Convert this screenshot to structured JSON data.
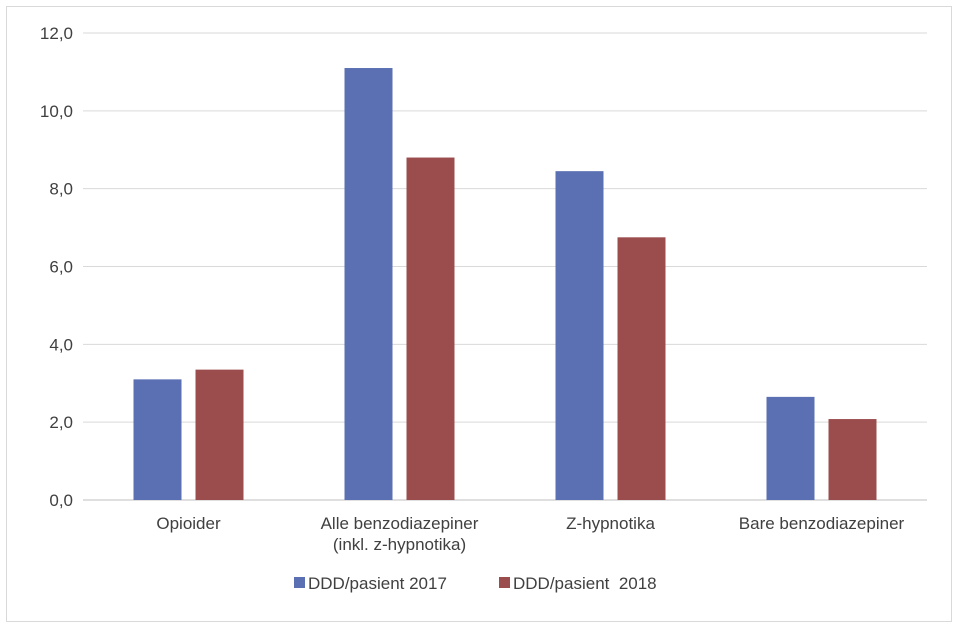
{
  "chart_data": {
    "type": "bar",
    "categories": [
      [
        "Opioider"
      ],
      [
        "Alle benzodiazepiner",
        "(inkl. z-hypnotika)"
      ],
      [
        "Z-hypnotika"
      ],
      [
        "Bare benzodiazepiner"
      ]
    ],
    "series": [
      {
        "name": "DDD/pasient 2017",
        "color": "#5b70b3",
        "values": [
          3.1,
          11.1,
          8.45,
          2.65
        ]
      },
      {
        "name": "DDD/pasient  2018",
        "color": "#9b4d4d",
        "values": [
          3.35,
          8.8,
          6.75,
          2.08
        ]
      }
    ],
    "yticks": [
      "0,0",
      "2,0",
      "4,0",
      "6,0",
      "8,0",
      "10,0",
      "12,0"
    ],
    "ylim": [
      0,
      12
    ],
    "grid": true,
    "legend_position": "bottom"
  }
}
